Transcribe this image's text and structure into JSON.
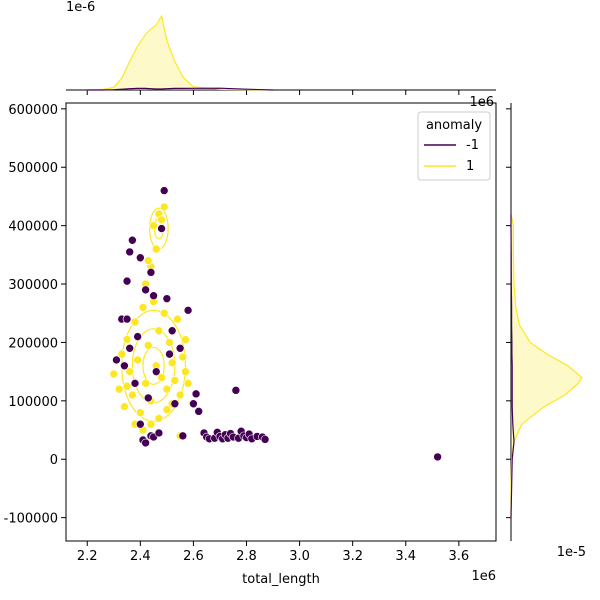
{
  "chart_data": {
    "type": "scatter",
    "title": "",
    "xlabel": "total_length",
    "ylabel": "",
    "x_offset_label": "1e6",
    "y_top_margin_offset_label": "1e-6",
    "x_right_margin_offset_label": "1e-5",
    "right_marginal_offset_label": "1e6",
    "xlim": [
      2.12,
      3.74
    ],
    "ylim": [
      -140000,
      610000
    ],
    "x_ticks": [
      2.2,
      2.4,
      2.6,
      2.8,
      3.0,
      3.2,
      3.4,
      3.6
    ],
    "x_tick_labels": [
      "2.2",
      "2.4",
      "2.6",
      "2.8",
      "3.0",
      "3.2",
      "3.4",
      "3.6"
    ],
    "y_ticks": [
      -100000,
      0,
      100000,
      200000,
      300000,
      400000,
      500000,
      600000
    ],
    "y_tick_labels": [
      "-100000",
      "0",
      "100000",
      "200000",
      "300000",
      "400000",
      "500000",
      "600000"
    ],
    "legend": {
      "title": "anomaly",
      "placement": "top-right",
      "entries": [
        {
          "label": "-1",
          "color": "#440154"
        },
        {
          "label": "1",
          "color": "#fde725"
        }
      ]
    },
    "series": [
      {
        "name": "-1",
        "color": "#440154",
        "points": [
          [
            2.33,
            240000
          ],
          [
            2.35,
            305000
          ],
          [
            2.35,
            240000
          ],
          [
            2.36,
            190000
          ],
          [
            2.38,
            130000
          ],
          [
            2.4,
            60000
          ],
          [
            2.41,
            33000
          ],
          [
            2.42,
            28000
          ],
          [
            2.44,
            40000
          ],
          [
            2.45,
            38000
          ],
          [
            2.47,
            45000
          ],
          [
            2.49,
            460000
          ],
          [
            2.48,
            395000
          ],
          [
            2.36,
            355000
          ],
          [
            2.37,
            375000
          ],
          [
            2.42,
            290000
          ],
          [
            2.45,
            280000
          ],
          [
            2.5,
            275000
          ],
          [
            2.52,
            220000
          ],
          [
            2.55,
            190000
          ],
          [
            2.58,
            255000
          ],
          [
            2.6,
            95000
          ],
          [
            2.61,
            112000
          ],
          [
            2.62,
            82000
          ],
          [
            2.56,
            40000
          ],
          [
            2.64,
            45000
          ],
          [
            2.65,
            38000
          ],
          [
            2.66,
            35000
          ],
          [
            2.68,
            36000
          ],
          [
            2.69,
            46000
          ],
          [
            2.7,
            39000
          ],
          [
            2.71,
            35000
          ],
          [
            2.72,
            42000
          ],
          [
            2.73,
            36000
          ],
          [
            2.74,
            44000
          ],
          [
            2.75,
            38000
          ],
          [
            2.76,
            118000
          ],
          [
            2.77,
            36000
          ],
          [
            2.78,
            48000
          ],
          [
            2.79,
            40000
          ],
          [
            2.8,
            37000
          ],
          [
            2.81,
            43000
          ],
          [
            2.82,
            35000
          ],
          [
            2.84,
            39000
          ],
          [
            2.86,
            38000
          ],
          [
            2.87,
            34000
          ],
          [
            3.52,
            4000
          ],
          [
            2.34,
            160000
          ],
          [
            2.39,
            210000
          ],
          [
            2.43,
            105000
          ],
          [
            2.46,
            150000
          ],
          [
            2.51,
            180000
          ],
          [
            2.53,
            95000
          ],
          [
            2.31,
            170000
          ],
          [
            2.4,
            345000
          ],
          [
            2.44,
            320000
          ]
        ]
      },
      {
        "name": "1",
        "color": "#fde725",
        "points": [
          [
            2.3,
            146000
          ],
          [
            2.32,
            120000
          ],
          [
            2.33,
            180000
          ],
          [
            2.34,
            90000
          ],
          [
            2.35,
            205000
          ],
          [
            2.36,
            150000
          ],
          [
            2.37,
            110000
          ],
          [
            2.38,
            235000
          ],
          [
            2.39,
            170000
          ],
          [
            2.4,
            80000
          ],
          [
            2.41,
            260000
          ],
          [
            2.42,
            130000
          ],
          [
            2.43,
            195000
          ],
          [
            2.44,
            100000
          ],
          [
            2.45,
            270000
          ],
          [
            2.46,
            160000
          ],
          [
            2.47,
            220000
          ],
          [
            2.48,
            140000
          ],
          [
            2.49,
            250000
          ],
          [
            2.5,
            120000
          ],
          [
            2.51,
            200000
          ],
          [
            2.52,
            165000
          ],
          [
            2.53,
            135000
          ],
          [
            2.54,
            240000
          ],
          [
            2.55,
            110000
          ],
          [
            2.56,
            175000
          ],
          [
            2.57,
            150000
          ],
          [
            2.58,
            130000
          ],
          [
            2.42,
            300000
          ],
          [
            2.44,
            330000
          ],
          [
            2.46,
            360000
          ],
          [
            2.47,
            420000
          ],
          [
            2.48,
            410000
          ],
          [
            2.49,
            432000
          ],
          [
            2.45,
            400000
          ],
          [
            2.43,
            340000
          ],
          [
            2.41,
            50000
          ],
          [
            2.44,
            60000
          ],
          [
            2.47,
            70000
          ],
          [
            2.55,
            40000
          ],
          [
            2.38,
            60000
          ],
          [
            2.35,
            125000
          ],
          [
            2.52,
            95000
          ],
          [
            2.5,
            85000
          ],
          [
            2.57,
            205000
          ]
        ]
      }
    ],
    "density_contours": [
      {
        "series": "1",
        "center": [
          2.45,
          160000
        ],
        "spread": [
          0.12,
          95000
        ],
        "levels": 3
      },
      {
        "series": "1",
        "center": [
          2.47,
          395000
        ],
        "spread": [
          0.035,
          35000
        ],
        "levels": 2
      }
    ],
    "top_marginal": {
      "type": "kde",
      "x": [
        2.2,
        2.26,
        2.3,
        2.33,
        2.36,
        2.39,
        2.42,
        2.44,
        2.46,
        2.48,
        2.5,
        2.53,
        2.56,
        2.6,
        2.7,
        2.8,
        2.9
      ],
      "series_1": [
        0,
        0.05,
        0.2,
        0.9,
        2.2,
        3.4,
        4.3,
        4.7,
        5.0,
        5.7,
        3.8,
        2.2,
        1.0,
        0.25,
        0.05,
        0.02,
        0
      ],
      "series_-1": [
        0,
        0,
        0.02,
        0.06,
        0.1,
        0.12,
        0.12,
        0.1,
        0.08,
        0.08,
        0.1,
        0.12,
        0.12,
        0.13,
        0.14,
        0.06,
        0
      ],
      "max_value": 5.7
    },
    "right_marginal": {
      "type": "kde",
      "y": [
        -100000,
        -50000,
        0,
        30000,
        60000,
        90000,
        110000,
        130000,
        140000,
        160000,
        180000,
        200000,
        230000,
        260000,
        300000,
        350000,
        400000,
        420000
      ],
      "series_1": [
        0,
        0,
        0.01,
        0.05,
        0.18,
        0.55,
        0.9,
        1.12,
        1.18,
        0.95,
        0.6,
        0.32,
        0.14,
        0.08,
        0.05,
        0.04,
        0.04,
        0
      ],
      "series_-1": [
        0,
        0.01,
        0.02,
        0.05,
        0.03,
        0.02,
        0.02,
        0.02,
        0.02,
        0.02,
        0.015,
        0.015,
        0.01,
        0.01,
        0.005,
        0.003,
        0,
        0
      ],
      "max_value": 1.2
    }
  }
}
